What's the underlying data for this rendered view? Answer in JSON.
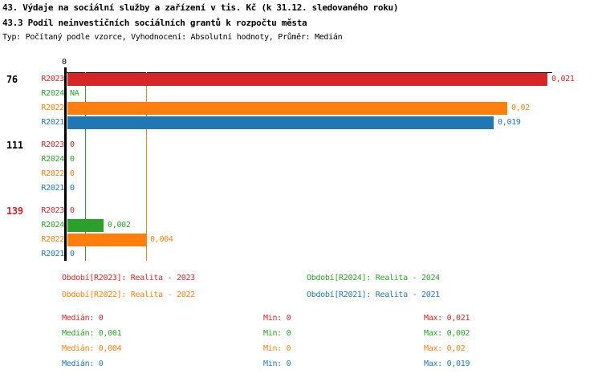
{
  "title": {
    "line1": "43. Výdaje na sociální služby a zařízení v tis. Kč (k 31.12. sledovaného roku)",
    "line2": "43.3 Podíl neinvestičních sociálních grantů k rozpočtu města",
    "subtitle": "Typ: Počítaný podle vzorce, Vyhodnocení: Absolutní hodnoty, Průměr: Medián"
  },
  "colors": {
    "R2023": "#d62728",
    "R2024": "#2ca02c",
    "R2022": "#ff7f0e",
    "R2021": "#1f77b4",
    "axis": "#000000",
    "group_label": "#000000",
    "group_label_highlight": "#d62728"
  },
  "chart_data": {
    "type": "bar",
    "orientation": "horizontal",
    "title": "43.3 Podíl neinvestičních sociálních grantů k rozpočtu města",
    "x_axis": {
      "origin_tick_label": "0",
      "min": 0,
      "max": 0.0214,
      "grid": false
    },
    "series_order": [
      "R2023",
      "R2024",
      "R2022",
      "R2021"
    ],
    "median_lines": [
      {
        "series": "R2024",
        "value": 0.0008
      },
      {
        "series": "R2022",
        "value": 0.0035
      }
    ],
    "groups": [
      {
        "id": "76",
        "highlighted": false,
        "rows": [
          {
            "series": "R2023",
            "value": 0.0214,
            "label": "0,021"
          },
          {
            "series": "R2024",
            "value": null,
            "label": "NA"
          },
          {
            "series": "R2022",
            "value": 0.0196,
            "label": "0,02"
          },
          {
            "series": "R2021",
            "value": 0.019,
            "label": "0,019"
          }
        ]
      },
      {
        "id": "111",
        "highlighted": false,
        "rows": [
          {
            "series": "R2023",
            "value": 0,
            "label": "0"
          },
          {
            "series": "R2024",
            "value": 0,
            "label": "0"
          },
          {
            "series": "R2022",
            "value": 0,
            "label": "0"
          },
          {
            "series": "R2021",
            "value": 0,
            "label": "0"
          }
        ]
      },
      {
        "id": "139",
        "highlighted": true,
        "rows": [
          {
            "series": "R2023",
            "value": 0,
            "label": "0"
          },
          {
            "series": "R2024",
            "value": 0.0016,
            "label": "0,002"
          },
          {
            "series": "R2022",
            "value": 0.0035,
            "label": "0,004"
          },
          {
            "series": "R2021",
            "value": 0,
            "label": "0"
          }
        ]
      }
    ]
  },
  "legend": {
    "items": [
      {
        "series": "R2023",
        "label": "Období[R2023]: Realita - 2023"
      },
      {
        "series": "R2024",
        "label": "Období[R2024]: Realita - 2024"
      },
      {
        "series": "R2022",
        "label": "Období[R2022]: Realita - 2022"
      },
      {
        "series": "R2021",
        "label": "Období[R2021]: Realita - 2021"
      }
    ]
  },
  "stats": {
    "labels": {
      "median": "Medián",
      "min": "Min",
      "max": "Max"
    },
    "rows": [
      {
        "series": "R2023",
        "median": "0",
        "min": "0",
        "max": "0,021"
      },
      {
        "series": "R2024",
        "median": "0,001",
        "min": "0",
        "max": "0,002"
      },
      {
        "series": "R2022",
        "median": "0,004",
        "min": "0",
        "max": "0,02"
      },
      {
        "series": "R2021",
        "median": "0",
        "min": "0",
        "max": "0,019"
      }
    ]
  }
}
